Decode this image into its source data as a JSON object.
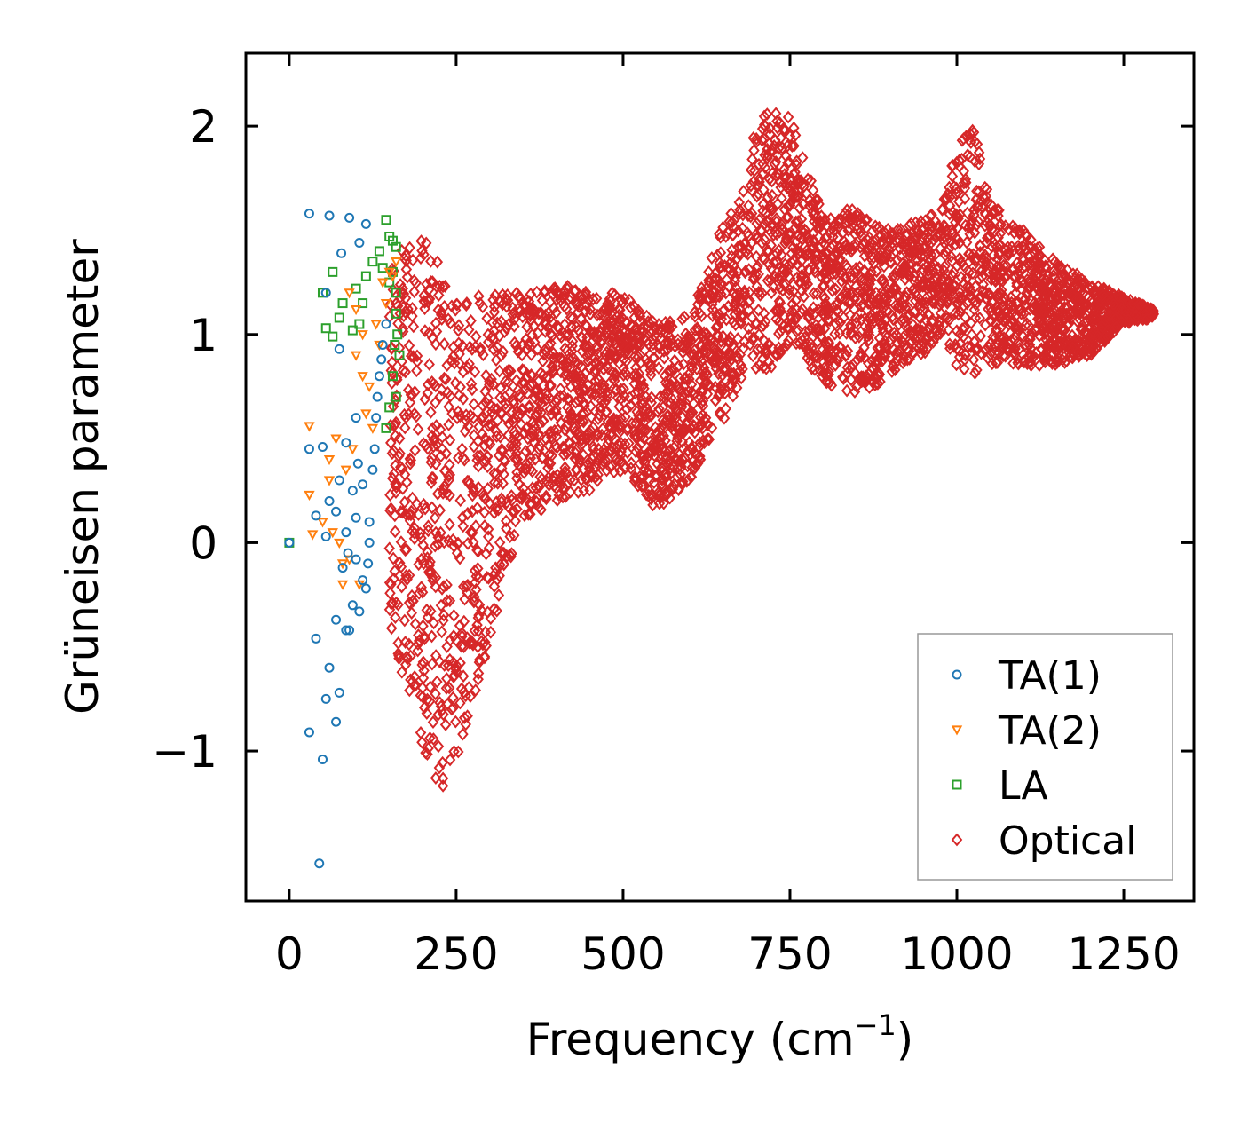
{
  "chart_data": {
    "type": "scatter",
    "title": "",
    "xlabel": "Frequency (cm",
    "xlabel_exponent": "−1",
    "xlabel_suffix": ")",
    "ylabel": "Grüneisen parameter",
    "xlim": [
      -65,
      1355
    ],
    "ylim": [
      -1.72,
      2.35
    ],
    "x_ticks": [
      0,
      250,
      500,
      750,
      1000,
      1250
    ],
    "x_tick_labels": [
      "0",
      "250",
      "500",
      "750",
      "1000",
      "1250"
    ],
    "y_ticks": [
      -1,
      0,
      1,
      2
    ],
    "y_tick_labels": [
      "−1",
      "0",
      "1",
      "2"
    ],
    "grid": false,
    "legend_position": "bottom-right",
    "series": [
      {
        "name": "TA(1)",
        "marker": "circle",
        "color": "#1f77b4",
        "points": [
          [
            0,
            0
          ],
          [
            30,
            1.58
          ],
          [
            60,
            1.57
          ],
          [
            90,
            1.56
          ],
          [
            115,
            1.53
          ],
          [
            105,
            1.44
          ],
          [
            78,
            1.39
          ],
          [
            55,
            1.2
          ],
          [
            75,
            0.93
          ],
          [
            100,
            0.6
          ],
          [
            85,
            0.48
          ],
          [
            30,
            0.45
          ],
          [
            50,
            0.46
          ],
          [
            75,
            0.3
          ],
          [
            60,
            0.2
          ],
          [
            40,
            0.13
          ],
          [
            70,
            0.15
          ],
          [
            100,
            0.12
          ],
          [
            55,
            0.03
          ],
          [
            85,
            0.05
          ],
          [
            120,
            0.0
          ],
          [
            100,
            -0.08
          ],
          [
            80,
            -0.12
          ],
          [
            110,
            -0.18
          ],
          [
            95,
            -0.3
          ],
          [
            70,
            -0.37
          ],
          [
            85,
            -0.42
          ],
          [
            40,
            -0.46
          ],
          [
            60,
            -0.6
          ],
          [
            75,
            -0.72
          ],
          [
            55,
            -0.75
          ],
          [
            30,
            -0.91
          ],
          [
            50,
            -1.04
          ],
          [
            70,
            -0.86
          ],
          [
            45,
            -1.54
          ],
          [
            90,
            -0.42
          ],
          [
            105,
            -0.33
          ],
          [
            115,
            -0.22
          ],
          [
            125,
            0.35
          ],
          [
            130,
            0.6
          ],
          [
            135,
            0.8
          ],
          [
            140,
            0.95
          ],
          [
            145,
            1.05
          ],
          [
            128,
            0.45
          ],
          [
            132,
            0.7
          ],
          [
            138,
            0.88
          ],
          [
            120,
            0.1
          ],
          [
            110,
            0.28
          ],
          [
            95,
            0.25
          ],
          [
            88,
            -0.05
          ],
          [
            118,
            -0.1
          ],
          [
            103,
            0.38
          ]
        ]
      },
      {
        "name": "TA(2)",
        "marker": "triangle-down",
        "color": "#ff7f0e",
        "points": [
          [
            30,
            0.56
          ],
          [
            30,
            0.23
          ],
          [
            35,
            0.04
          ],
          [
            60,
            0.3
          ],
          [
            65,
            0.05
          ],
          [
            80,
            -0.1
          ],
          [
            90,
            -0.08
          ],
          [
            70,
            0.5
          ],
          [
            90,
            1.2
          ],
          [
            100,
            1.12
          ],
          [
            110,
            0.8
          ],
          [
            120,
            0.75
          ],
          [
            130,
            1.05
          ],
          [
            140,
            1.25
          ],
          [
            150,
            1.3
          ],
          [
            155,
            1.28
          ],
          [
            160,
            1.35
          ],
          [
            125,
            0.55
          ],
          [
            115,
            0.62
          ],
          [
            95,
            0.45
          ],
          [
            85,
            0.35
          ],
          [
            105,
            -0.2
          ],
          [
            80,
            -0.2
          ],
          [
            60,
            0.4
          ],
          [
            100,
            0.9
          ],
          [
            135,
            0.95
          ],
          [
            145,
            1.15
          ],
          [
            50,
            0.1
          ],
          [
            75,
            0.0
          ],
          [
            110,
            1.0
          ]
        ]
      },
      {
        "name": "LA",
        "marker": "square",
        "color": "#2ca02c",
        "points": [
          [
            0,
            0
          ],
          [
            50,
            1.2
          ],
          [
            55,
            1.03
          ],
          [
            65,
            0.99
          ],
          [
            75,
            1.08
          ],
          [
            80,
            1.15
          ],
          [
            95,
            1.02
          ],
          [
            100,
            1.22
          ],
          [
            105,
            1.05
          ],
          [
            115,
            1.28
          ],
          [
            125,
            1.35
          ],
          [
            135,
            1.4
          ],
          [
            145,
            1.55
          ],
          [
            150,
            1.47
          ],
          [
            155,
            1.45
          ],
          [
            160,
            1.42
          ],
          [
            155,
            1.3
          ],
          [
            160,
            1.2
          ],
          [
            160,
            1.1
          ],
          [
            158,
            0.95
          ],
          [
            155,
            0.8
          ],
          [
            150,
            0.65
          ],
          [
            145,
            0.55
          ],
          [
            65,
            1.3
          ],
          [
            110,
            1.15
          ],
          [
            140,
            1.32
          ],
          [
            162,
            1.0
          ],
          [
            165,
            0.9
          ],
          [
            150,
            1.25
          ],
          [
            160,
            0.7
          ]
        ]
      },
      {
        "name": "Optical",
        "marker": "diamond",
        "color": "#d62728",
        "points": []
      }
    ],
    "optical_band": {
      "note": "dense band of Optical points; frequency vs [lower, upper] Grüneisen envelope",
      "x": [
        150,
        175,
        200,
        225,
        250,
        275,
        300,
        350,
        400,
        450,
        500,
        550,
        600,
        625,
        650,
        675,
        700,
        725,
        750,
        775,
        800,
        850,
        900,
        950,
        975,
        1000,
        1025,
        1050,
        1075,
        1100,
        1150,
        1200,
        1250,
        1295
      ],
      "lower": [
        -0.45,
        -0.7,
        -1.0,
        -1.2,
        -1.05,
        -0.8,
        -0.45,
        0.1,
        0.2,
        0.25,
        0.35,
        0.15,
        0.3,
        0.45,
        0.55,
        0.75,
        0.8,
        0.85,
        0.9,
        0.85,
        0.75,
        0.7,
        0.8,
        0.9,
        1.0,
        0.85,
        0.8,
        0.85,
        0.85,
        0.85,
        0.85,
        0.9,
        1.05,
        1.08
      ],
      "upper": [
        1.3,
        1.45,
        1.5,
        1.35,
        1.15,
        1.2,
        1.2,
        1.2,
        1.25,
        1.2,
        1.2,
        1.05,
        1.1,
        1.3,
        1.55,
        1.65,
        2.05,
        2.1,
        2.05,
        1.8,
        1.6,
        1.6,
        1.5,
        1.55,
        1.6,
        1.9,
        2.0,
        1.65,
        1.55,
        1.5,
        1.35,
        1.25,
        1.18,
        1.12
      ]
    }
  }
}
